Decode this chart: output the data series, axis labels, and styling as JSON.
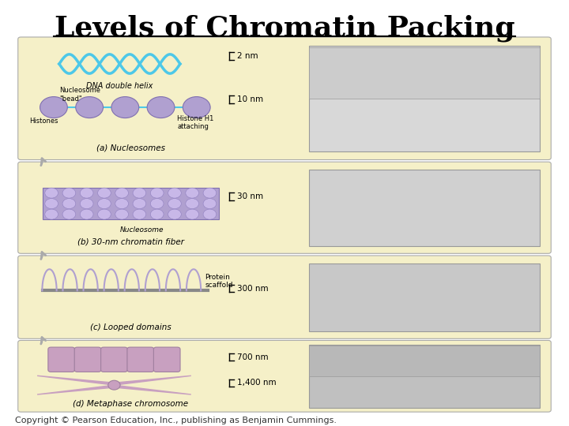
{
  "title": "Levels of Chromatin Packing",
  "title_fontsize": 26,
  "title_color": "#000000",
  "title_underline": true,
  "background_color": "#ffffff",
  "copyright_text": "Copyright © Pearson Education, Inc., publishing as Benjamin Cummings.",
  "copyright_fontsize": 8,
  "panel_bg": "#f5f0c8",
  "panel_border": "#cccccc",
  "scale_labels": [
    "2 nm",
    "10 nm",
    "30 nm",
    "300 nm",
    "700 nm",
    "1,400 nm"
  ]
}
